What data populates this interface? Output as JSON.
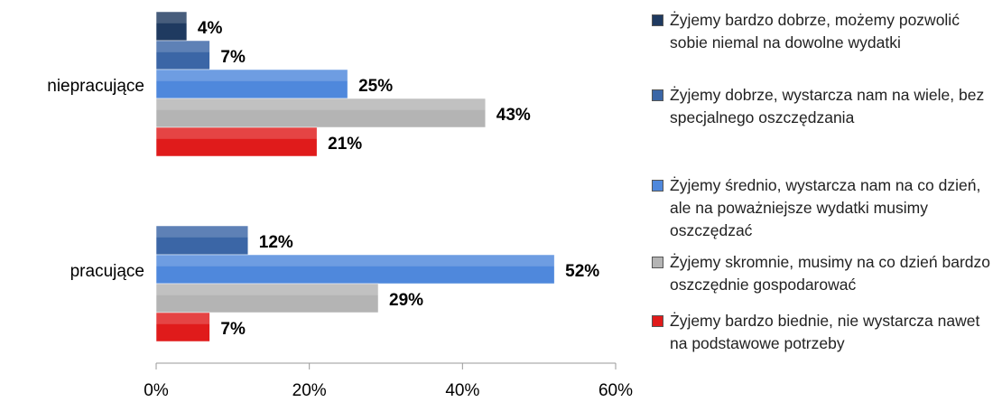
{
  "chart_data": {
    "type": "bar",
    "orientation": "horizontal",
    "categories": [
      "niepracujące",
      "pracujące"
    ],
    "series": [
      {
        "name": "Żyjemy bardzo dobrze, możemy pozwolić sobie niemal na dowolne wydatki",
        "color": "#1f3a60",
        "values": [
          4,
          null
        ],
        "value_labels": [
          "4%",
          null
        ]
      },
      {
        "name": "Żyjemy dobrze, wystarcza nam na wiele, bez specjalnego oszczędzania",
        "color": "#3b66a6",
        "values": [
          7,
          12
        ],
        "value_labels": [
          "7%",
          "12%"
        ]
      },
      {
        "name": "Żyjemy średnio, wystarcza nam na co dzień, ale na poważniejsze wydatki musimy oszczędzać",
        "color": "#4f88dc",
        "values": [
          25,
          52
        ],
        "value_labels": [
          "25%",
          "52%"
        ]
      },
      {
        "name": "Żyjemy skromnie, musimy na co dzień bardzo oszczędnie gospodarować",
        "color": "#b4b4b4",
        "values": [
          43,
          29
        ],
        "value_labels": [
          "43%",
          "29%"
        ]
      },
      {
        "name": "Żyjemy bardzo biednie, nie wystarcza nawet na podstawowe potrzeby",
        "color": "#e01b1b",
        "values": [
          21,
          7
        ],
        "value_labels": [
          "21%",
          "7%"
        ]
      }
    ],
    "xlim": [
      0,
      60
    ],
    "xticks": [
      {
        "value": 0,
        "label": "0%"
      },
      {
        "value": 20,
        "label": "20%"
      },
      {
        "value": 40,
        "label": "40%"
      },
      {
        "value": 60,
        "label": "60%"
      }
    ],
    "legend": "right"
  }
}
